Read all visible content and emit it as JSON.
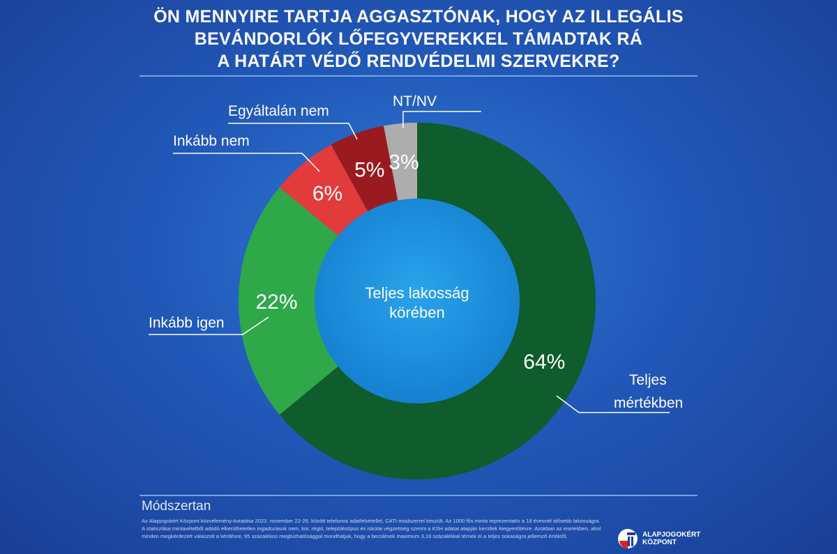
{
  "chart_data": {
    "type": "pie",
    "title": "ÖN MENNYIRE TARTJA AGGASZTÓNAK, HOGY AZ ILLEGÁLIS BEVÁNDORLÓK LŐFEGYVEREKKEL TÁMADTAK RÁ A HATÁRT VÉDŐ RENDVÉDELMI SZERVEKRE?",
    "title_lines": [
      "ÖN MENNYIRE TARTJA AGGASZTÓNAK, HOGY AZ ILLEGÁLIS",
      "BEVÁNDORLÓK LŐFEGYVEREKKEL TÁMADTAK RÁ",
      "A HATÁRT VÉDŐ RENDVÉDELMI SZERVEKRE?"
    ],
    "center_label": [
      "Teljes lakosság",
      "körében"
    ],
    "slices": [
      {
        "label": "Teljes mértékben",
        "label_lines": [
          "Teljes",
          "mértékben"
        ],
        "value": 64,
        "display": "64%",
        "color": "#0f5c2c"
      },
      {
        "label": "Inkább igen",
        "label_lines": [
          "Inkább igen"
        ],
        "value": 22,
        "display": "22%",
        "color": "#2fa84a"
      },
      {
        "label": "Inkább nem",
        "label_lines": [
          "Inkább nem"
        ],
        "value": 6,
        "display": "6%",
        "color": "#e23b3b"
      },
      {
        "label": "Egyáltalán nem",
        "label_lines": [
          "Egyáltalán nem"
        ],
        "value": 5,
        "display": "5%",
        "color": "#9a1b1f"
      },
      {
        "label": "NT/NV",
        "label_lines": [
          "NT/NV"
        ],
        "value": 3,
        "display": "3%",
        "color": "#adadad"
      }
    ]
  },
  "methodology": {
    "heading": "Módszertan",
    "text": "Az Alapjogokért Központ közvélemény-kutatása 2023. november 22-26. között telefonos adatfelvétellel, CATI-módszerrel készült. Az 1000 fős minta reprezentatív a 18 évesnél idősebb lakosságra. A statisztikai mintavételből adódó elkerülhetetlen ingadozások nem, kor, régió, településtípus és iskolai végzettség szerint a KSH adatai alapján kerültek kiegyenlítésre. Azokban az esetekben, ahol minden megkérdezett válaszolt a kérdésre, 95 százalékos megbízhatósággal mondhatjuk, hogy a becslések maximum 3,16 százalékkal térnek el a teljes sokaságra jellemző értéktől."
  },
  "logo": {
    "line1": "ALAPJOGOKÉRT",
    "line2": "KÖZPONT"
  }
}
